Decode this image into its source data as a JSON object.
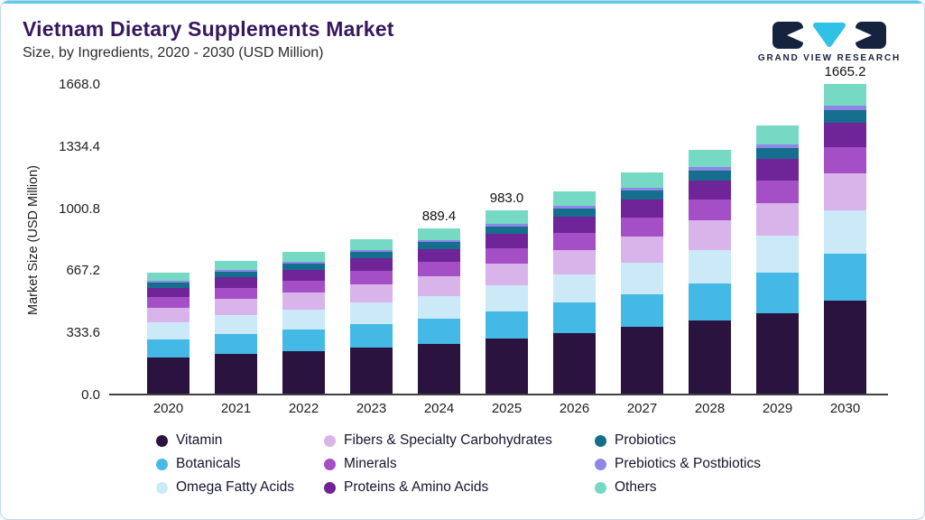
{
  "header": {
    "title": "Vietnam Dietary Supplements Market",
    "subtitle": "Size, by Ingredients, 2020 - 2030 (USD Million)",
    "logo_text": "GRAND VIEW RESEARCH"
  },
  "colors": {
    "accent_top": "#5bc9ea",
    "title": "#38175e",
    "logo_navy": "#16233f",
    "logo_cyan": "#2fc1e6",
    "axis_line": "#414141"
  },
  "chart_data": {
    "type": "bar",
    "stacked": true,
    "title": "Vietnam Dietary Supplements Market",
    "subtitle": "Size, by Ingredients, 2020 - 2030 (USD Million)",
    "xlabel": "",
    "ylabel": "Market Size (USD Million)",
    "ylim": [
      0,
      1668
    ],
    "yticks": [
      0.0,
      333.6,
      667.2,
      1000.8,
      1334.4,
      1668.0
    ],
    "grid": false,
    "legend_position": "bottom",
    "categories": [
      "2020",
      "2021",
      "2022",
      "2023",
      "2024",
      "2025",
      "2026",
      "2027",
      "2028",
      "2029",
      "2030"
    ],
    "total_labels": [
      "",
      "",
      "",
      "",
      "889.4",
      "983.0",
      "",
      "",
      "",
      "",
      "1665.2"
    ],
    "series": [
      {
        "name": "Vitamin",
        "color": "#2b1340",
        "values": [
          195.0,
          214.5,
          228.6,
          249.0,
          266.8,
          294.9,
          325.5,
          357.0,
          393.0,
          432.0,
          499.6
        ]
      },
      {
        "name": "Botanicals",
        "color": "#45b9e6",
        "values": [
          97.5,
          107.3,
          114.3,
          124.5,
          133.4,
          147.5,
          162.8,
          178.5,
          196.5,
          216.0,
          249.8
        ]
      },
      {
        "name": "Omega Fatty Acids",
        "color": "#cbe9f7",
        "values": [
          91.0,
          100.1,
          106.7,
          116.2,
          124.5,
          137.6,
          151.9,
          166.6,
          183.4,
          201.6,
          233.1
        ]
      },
      {
        "name": "Fibers & Specialty Carbohydrates",
        "color": "#d8b4ea",
        "values": [
          78.0,
          85.8,
          91.4,
          99.6,
          106.7,
          118.0,
          130.2,
          142.8,
          157.2,
          172.8,
          199.8
        ]
      },
      {
        "name": "Minerals",
        "color": "#a44fc6",
        "values": [
          55.3,
          60.8,
          64.8,
          70.6,
          75.6,
          83.6,
          92.2,
          101.2,
          111.4,
          122.4,
          141.5
        ]
      },
      {
        "name": "Proteins & Amino Acids",
        "color": "#6f2497",
        "values": [
          52.0,
          57.2,
          61.0,
          66.4,
          71.2,
          78.6,
          86.8,
          95.2,
          104.8,
          115.2,
          133.2
        ]
      },
      {
        "name": "Probiotics",
        "color": "#156e8e",
        "values": [
          26.0,
          28.6,
          30.5,
          33.2,
          35.6,
          39.3,
          43.4,
          47.6,
          52.4,
          57.6,
          66.6
        ]
      },
      {
        "name": "Prebiotics & Postbiotics",
        "color": "#8d87e8",
        "values": [
          9.8,
          10.7,
          11.4,
          12.5,
          13.3,
          14.7,
          16.3,
          17.9,
          19.7,
          21.6,
          25.0
        ]
      },
      {
        "name": "Others",
        "color": "#76d9c4",
        "values": [
          45.5,
          50.1,
          53.3,
          58.1,
          62.3,
          68.8,
          76.0,
          83.3,
          91.7,
          100.8,
          116.6
        ]
      }
    ]
  }
}
